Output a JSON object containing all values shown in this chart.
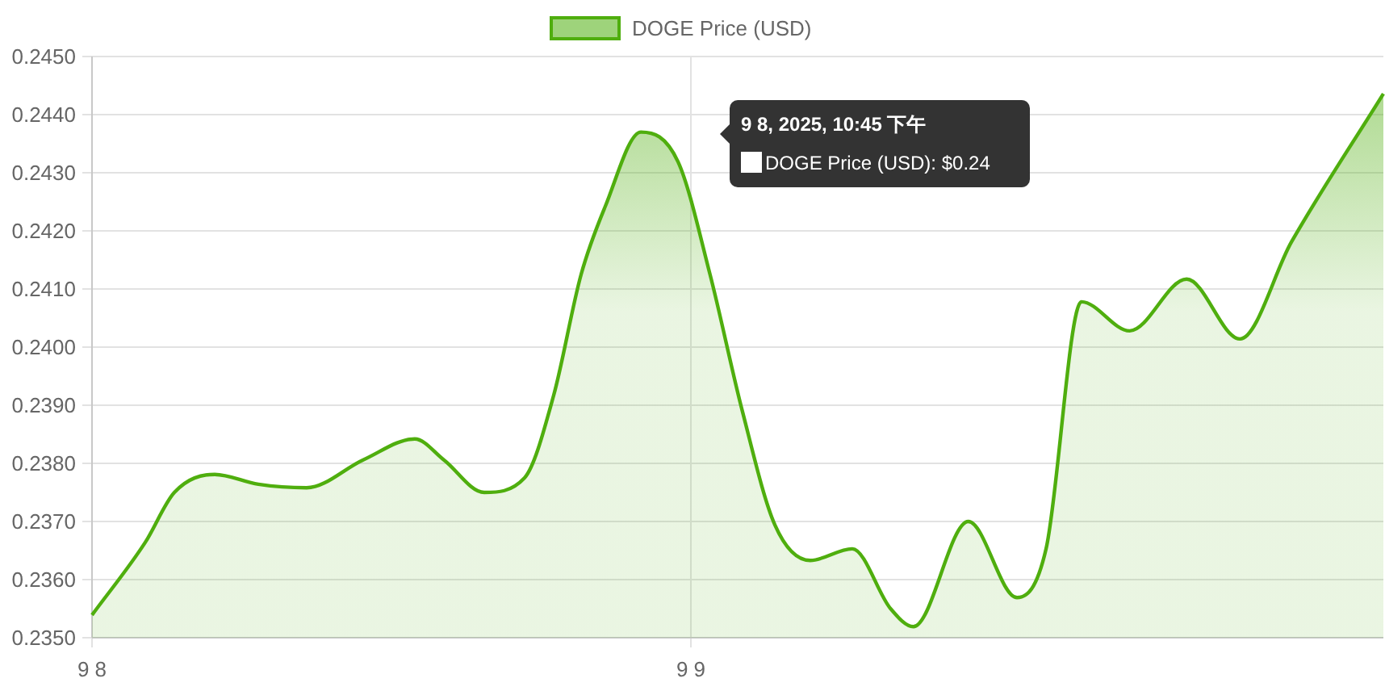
{
  "chart_data": {
    "type": "area",
    "x": [
      "2025-09-08T00:00",
      "2025-09-08T02:08",
      "2025-09-08T03:18",
      "2025-09-08T04:55",
      "2025-09-08T06:40",
      "2025-09-08T08:36",
      "2025-09-08T10:52",
      "2025-09-08T12:56",
      "2025-09-08T14:06",
      "2025-09-08T15:43",
      "2025-09-08T17:20",
      "2025-09-08T18:30",
      "2025-09-08T19:36",
      "2025-09-08T20:34",
      "2025-09-08T22:00",
      "2025-09-08T23:29",
      "2025-09-09T00:46",
      "2025-09-09T02:04",
      "2025-09-09T03:22",
      "2025-09-09T04:47",
      "2025-09-09T06:28",
      "2025-09-09T08:00",
      "2025-09-09T08:55",
      "2025-09-09T11:07",
      "2025-09-09T13:04",
      "2025-09-09T14:14",
      "2025-09-09T15:39",
      "2025-09-09T17:35",
      "2025-09-09T19:52",
      "2025-09-09T22:00",
      "2025-09-10T00:04",
      "2025-09-10T03:45"
    ],
    "series": [
      {
        "name": "DOGE Price (USD)",
        "color": "#4fae0e",
        "values": [
          0.23539,
          0.23664,
          0.2375,
          0.23781,
          0.23764,
          0.23758,
          0.23806,
          0.23842,
          0.23806,
          0.2375,
          0.23775,
          0.23917,
          0.24125,
          0.24242,
          0.2437,
          0.24319,
          0.24125,
          0.23889,
          0.23694,
          0.23633,
          0.23653,
          0.2355,
          0.23519,
          0.237,
          0.23569,
          0.23653,
          0.24078,
          0.24028,
          0.24117,
          0.24014,
          0.24181,
          0.24436
        ]
      }
    ],
    "xlim": [
      "2025-09-08T00:00",
      "2025-09-10T03:45"
    ],
    "xticks": [
      {
        "value": "2025-09-08T00:00",
        "label": "9 8"
      },
      {
        "value": "2025-09-09T00:00",
        "label": "9 9"
      }
    ],
    "ylim": [
      0.235,
      0.245
    ],
    "yticks": [
      {
        "value": 0.235,
        "label": "0.2350"
      },
      {
        "value": 0.236,
        "label": "0.2360"
      },
      {
        "value": 0.237,
        "label": "0.2370"
      },
      {
        "value": 0.238,
        "label": "0.2380"
      },
      {
        "value": 0.239,
        "label": "0.2390"
      },
      {
        "value": 0.24,
        "label": "0.2400"
      },
      {
        "value": 0.241,
        "label": "0.2410"
      },
      {
        "value": 0.242,
        "label": "0.2420"
      },
      {
        "value": 0.243,
        "label": "0.2430"
      },
      {
        "value": 0.244,
        "label": "0.2440"
      },
      {
        "value": 0.245,
        "label": "0.2450"
      }
    ],
    "grid": true,
    "legend": "top",
    "annotations": [
      "9 8, 2025, 10:45 下午",
      "DOGE Price (USD): $0.24"
    ]
  }
}
